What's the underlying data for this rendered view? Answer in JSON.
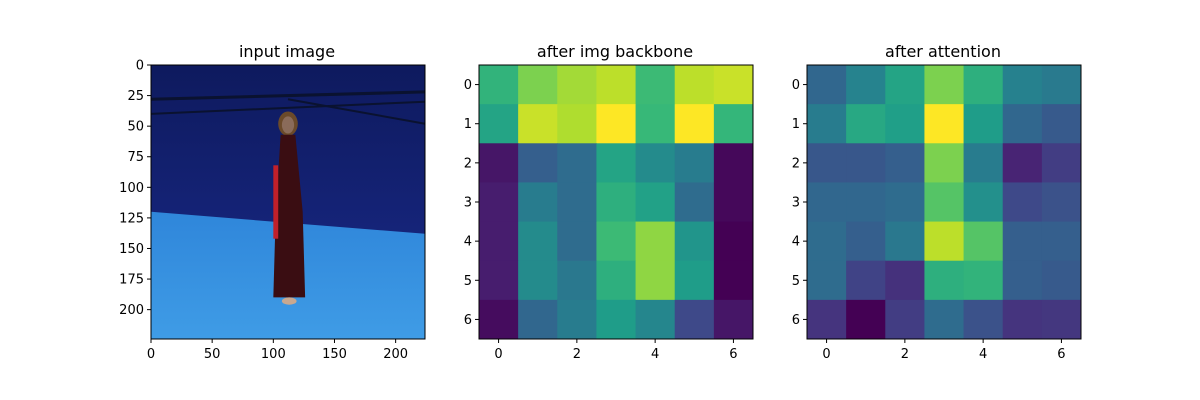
{
  "figure": {
    "panel_titles": [
      "input image",
      "after img backbone",
      "after attention"
    ]
  },
  "chart_data": [
    {
      "type": "image",
      "title": "input image",
      "description_colors": {
        "backdrop": "#1a2a8a",
        "floor": "#2a7fd6",
        "dress": "#3a0d12",
        "sash": "#c2202a"
      },
      "xlim": [
        0,
        224
      ],
      "ylim": [
        224,
        0
      ],
      "xticks": [
        0,
        50,
        100,
        150,
        200
      ],
      "yticks": [
        0,
        25,
        50,
        75,
        100,
        125,
        150,
        175,
        200
      ]
    },
    {
      "type": "heatmap",
      "title": "after img backbone",
      "colormap": "viridis",
      "xticks": [
        0,
        2,
        4,
        6
      ],
      "yticks": [
        0,
        1,
        2,
        3,
        4,
        5,
        6
      ],
      "values": [
        [
          0.65,
          0.8,
          0.86,
          0.9,
          0.68,
          0.9,
          0.92
        ],
        [
          0.58,
          0.92,
          0.88,
          1.0,
          0.67,
          1.0,
          0.66
        ],
        [
          0.06,
          0.3,
          0.35,
          0.58,
          0.48,
          0.42,
          0.02
        ],
        [
          0.08,
          0.42,
          0.35,
          0.63,
          0.57,
          0.35,
          0.02
        ],
        [
          0.08,
          0.48,
          0.35,
          0.68,
          0.83,
          0.52,
          0.0
        ],
        [
          0.08,
          0.48,
          0.4,
          0.63,
          0.83,
          0.55,
          0.0
        ],
        [
          0.03,
          0.33,
          0.42,
          0.55,
          0.46,
          0.22,
          0.06
        ]
      ]
    },
    {
      "type": "heatmap",
      "title": "after attention",
      "colormap": "viridis",
      "xticks": [
        0,
        2,
        4,
        6
      ],
      "yticks": [
        0,
        1,
        2,
        3,
        4,
        5,
        6
      ],
      "values": [
        [
          0.33,
          0.45,
          0.58,
          0.8,
          0.63,
          0.44,
          0.41
        ],
        [
          0.42,
          0.6,
          0.56,
          1.0,
          0.55,
          0.33,
          0.28
        ],
        [
          0.27,
          0.27,
          0.3,
          0.8,
          0.42,
          0.1,
          0.18
        ],
        [
          0.33,
          0.33,
          0.35,
          0.73,
          0.5,
          0.22,
          0.25
        ],
        [
          0.35,
          0.3,
          0.4,
          0.9,
          0.73,
          0.3,
          0.3
        ],
        [
          0.35,
          0.2,
          0.14,
          0.63,
          0.65,
          0.3,
          0.28
        ],
        [
          0.15,
          0.0,
          0.18,
          0.35,
          0.25,
          0.15,
          0.16
        ]
      ]
    }
  ]
}
